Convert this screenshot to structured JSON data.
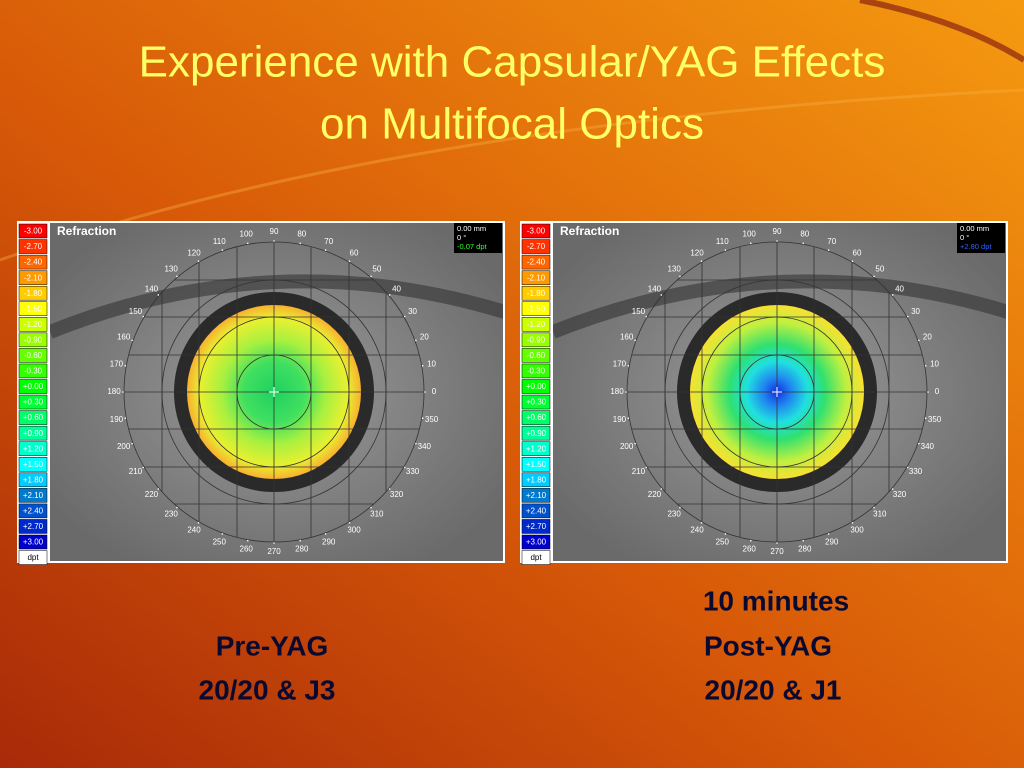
{
  "title": [
    "Experience with Capsular/YAG Effects",
    "on Multifocal Optics"
  ],
  "panels": [
    {
      "heading": "Refraction",
      "scale": [
        "-3.00",
        "-2.70",
        "-2.40",
        "-2.10",
        "-1.80",
        "-1.50",
        "-1.20",
        "-0.90",
        "-0.60",
        "-0.30",
        "+0.00",
        "+0.30",
        "+0.60",
        "+0.90",
        "+1.20",
        "+1.50",
        "+1.80",
        "+2.10",
        "+2.40",
        "+2.70",
        "+3.00",
        "dpt"
      ],
      "info": [
        "0.00 mm",
        "0 °",
        "-0.07 dpt"
      ],
      "angles": [
        "0",
        "10",
        "20",
        "30",
        "40",
        "50",
        "60",
        "70",
        "80",
        "90",
        "100",
        "110",
        "120",
        "130",
        "140",
        "150",
        "160",
        "170",
        "180",
        "190",
        "200",
        "210",
        "220",
        "230",
        "240",
        "250",
        "260",
        "270",
        "280",
        "290",
        "300",
        "310",
        "320",
        "330",
        "340",
        "350"
      ],
      "caption": [
        "Pre-YAG",
        "20/20 & J3"
      ]
    },
    {
      "heading": "Refraction",
      "scale": [
        "-3.00",
        "-2.70",
        "-2.40",
        "-2.10",
        "-1.80",
        "-1.50",
        "-1.20",
        "-0.90",
        "-0.60",
        "-0.30",
        "+0.00",
        "+0.30",
        "+0.60",
        "+0.90",
        "+1.20",
        "+1.50",
        "+1.80",
        "+2.10",
        "+2.40",
        "+2.70",
        "+3.00",
        "dpt"
      ],
      "info": [
        "0.00 mm",
        "0 °",
        "+2.80 dpt"
      ],
      "angles": [
        "0",
        "10",
        "20",
        "30",
        "40",
        "50",
        "60",
        "70",
        "80",
        "90",
        "100",
        "110",
        "120",
        "130",
        "140",
        "150",
        "160",
        "170",
        "180",
        "190",
        "200",
        "210",
        "220",
        "230",
        "240",
        "250",
        "260",
        "270",
        "280",
        "290",
        "300",
        "310",
        "320",
        "330",
        "340",
        "350"
      ],
      "caption": [
        "10 minutes",
        "Post-YAG",
        "20/20 & J1"
      ]
    }
  ]
}
